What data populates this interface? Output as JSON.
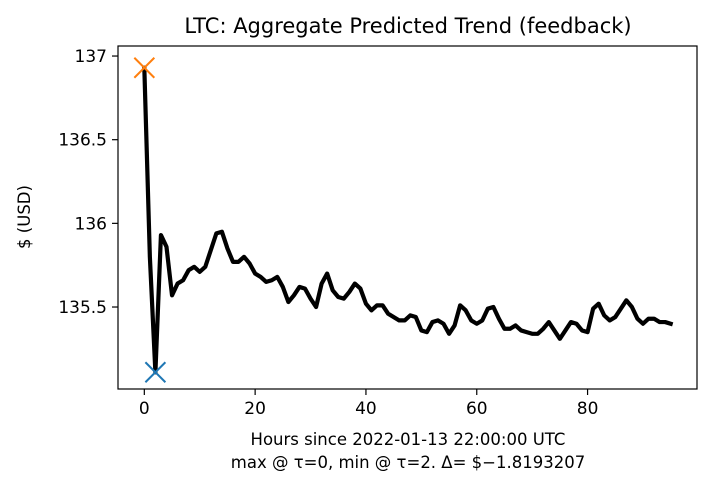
{
  "chart_data": {
    "type": "line",
    "title": "LTC: Aggregate Predicted Trend (feedback)",
    "xlabel": "Hours since 2022-01-13 22:00:00 UTC",
    "xlabel_line2": "max @ τ=0, min @ τ=2. Δ= $−1.8193207",
    "ylabel": "$ (USD)",
    "xlim": [
      -4.75,
      99.75
    ],
    "ylim": [
      135.01,
      137.06
    ],
    "x_ticks": [
      0,
      20,
      40,
      60,
      80
    ],
    "y_ticks": [
      135.5,
      136,
      136.5,
      137
    ],
    "y_tick_labels": [
      "135.5",
      "136",
      "136.5",
      "137"
    ],
    "grid": false,
    "series": [
      {
        "color": "#000000",
        "x": [
          0,
          1,
          2,
          3,
          4,
          5,
          6,
          7,
          8,
          9,
          10,
          11,
          12,
          13,
          14,
          15,
          16,
          17,
          18,
          19,
          20,
          21,
          22,
          23,
          24,
          25,
          26,
          27,
          28,
          29,
          30,
          31,
          32,
          33,
          34,
          35,
          36,
          37,
          38,
          39,
          40,
          41,
          42,
          43,
          44,
          45,
          46,
          47,
          48,
          49,
          50,
          51,
          52,
          53,
          54,
          55,
          56,
          57,
          58,
          59,
          60,
          61,
          62,
          63,
          64,
          65,
          66,
          67,
          68,
          69,
          70,
          71,
          72,
          73,
          74,
          75,
          76,
          77,
          78,
          79,
          80,
          81,
          82,
          83,
          84,
          85,
          86,
          87,
          88,
          89,
          90,
          91,
          92,
          93,
          94,
          95
        ],
        "y": [
          136.93,
          135.8,
          135.11,
          135.93,
          135.86,
          135.57,
          135.64,
          135.66,
          135.72,
          135.74,
          135.71,
          135.74,
          135.84,
          135.94,
          135.95,
          135.85,
          135.77,
          135.77,
          135.8,
          135.76,
          135.7,
          135.68,
          135.65,
          135.66,
          135.68,
          135.62,
          135.53,
          135.57,
          135.62,
          135.61,
          135.55,
          135.5,
          135.64,
          135.7,
          135.6,
          135.56,
          135.55,
          135.59,
          135.64,
          135.61,
          135.52,
          135.48,
          135.51,
          135.51,
          135.46,
          135.44,
          135.42,
          135.42,
          135.45,
          135.44,
          135.36,
          135.35,
          135.41,
          135.42,
          135.4,
          135.34,
          135.39,
          135.51,
          135.48,
          135.42,
          135.4,
          135.42,
          135.49,
          135.5,
          135.43,
          135.37,
          135.37,
          135.39,
          135.36,
          135.35,
          135.34,
          135.34,
          135.37,
          135.41,
          135.36,
          135.31,
          135.36,
          135.41,
          135.4,
          135.36,
          135.35,
          135.49,
          135.52,
          135.45,
          135.42,
          135.44,
          135.49,
          135.54,
          135.5,
          135.43,
          135.4,
          135.43,
          135.43,
          135.41,
          135.41,
          135.4
        ]
      }
    ],
    "markers": [
      {
        "type": "max",
        "x": 0,
        "y": 136.93,
        "color": "#ff7f0e",
        "symbol": "x"
      },
      {
        "type": "min",
        "x": 2,
        "y": 135.11,
        "color": "#1f77b4",
        "symbol": "x"
      }
    ]
  }
}
